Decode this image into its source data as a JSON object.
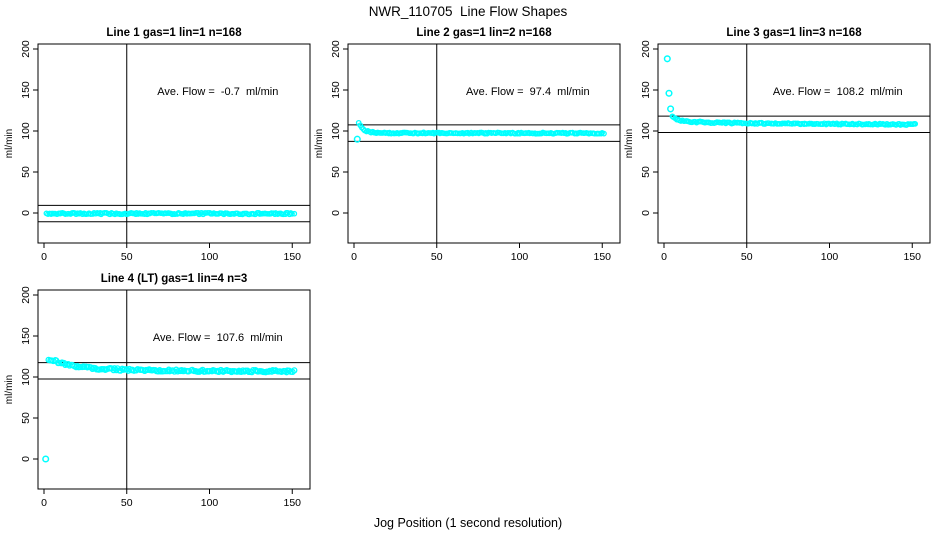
{
  "page": {
    "title": "NWR_110705  Line Flow Shapes",
    "xlabel": "Jog Position (1 second resolution)",
    "ylabel": "ml/min"
  },
  "colors": {
    "points": "#00FFFF",
    "axis": "#000000",
    "background": "#FFFFFF"
  },
  "chart_data": {
    "type": "scatter",
    "suptitle": "NWR_110705  Line Flow Shapes",
    "xlabel": "Jog Position (1 second resolution)",
    "ylabel": "ml/min",
    "x_ticks": [
      0,
      50,
      100,
      150
    ],
    "y_ticks": [
      0,
      50,
      100,
      150,
      200
    ],
    "xlim": [
      -4,
      161
    ],
    "ylim": [
      -30,
      208
    ],
    "vline_x": 50,
    "marker": "open-circle",
    "marker_color": "#00FFFF",
    "annotation_anchor": {
      "x": 105,
      "y": 144
    },
    "panels": [
      {
        "title": "Line 1 gas=1 lin=1 n=168",
        "ave_flow": -0.7,
        "n": 168,
        "annotation": "Ave. Flow =  -0.7  ml/min",
        "hlines": [
          9.3,
          -10.7
        ],
        "series_profile": [
          [
            1.5,
            -0.7
          ],
          [
            151,
            -0.7
          ]
        ],
        "outlier_points": [],
        "jitter": 1.0,
        "samples": 168,
        "marker_r": 2.2
      },
      {
        "title": "Line 2 gas=1 lin=2 n=168",
        "ave_flow": 97.4,
        "n": 168,
        "annotation": "Ave. Flow =  97.4  ml/min",
        "hlines": [
          107.4,
          87.4
        ],
        "series_profile": [
          [
            3,
            110.5
          ],
          [
            4,
            106.5
          ],
          [
            5,
            103.5
          ],
          [
            7,
            100.5
          ],
          [
            10,
            98.8
          ],
          [
            15,
            97.9
          ],
          [
            25,
            97.5
          ],
          [
            151,
            97.3
          ]
        ],
        "outlier_points": [
          [
            2,
            90
          ]
        ],
        "jitter": 0.8,
        "samples": 167,
        "marker_r": 2.2
      },
      {
        "title": "Line 3 gas=1 lin=3 n=168",
        "ave_flow": 108.2,
        "n": 168,
        "annotation": "Ave. Flow =  108.2  ml/min",
        "hlines": [
          118.2,
          98.2
        ],
        "series_profile": [
          [
            5,
            117.5
          ],
          [
            7,
            114.8
          ],
          [
            10,
            112.8
          ],
          [
            15,
            111.5
          ],
          [
            25,
            110.5
          ],
          [
            50,
            109.5
          ],
          [
            100,
            108.6
          ],
          [
            152,
            108
          ]
        ],
        "outlier_points": [
          [
            2,
            188
          ],
          [
            3,
            146
          ],
          [
            4,
            127
          ]
        ],
        "jitter": 0.8,
        "samples": 164,
        "marker_r": 2.2
      },
      {
        "title": "Line 4 (LT) gas=1 lin=4 n=3",
        "ave_flow": 107.6,
        "n": 3,
        "annotation": "Ave. Flow =  107.6  ml/min",
        "hlines": [
          117.6,
          97.6
        ],
        "series_profile": [
          [
            3,
            122
          ],
          [
            5,
            120.5
          ],
          [
            8,
            118.5
          ],
          [
            12,
            116
          ],
          [
            18,
            113.5
          ],
          [
            25,
            111.5
          ],
          [
            35,
            110
          ],
          [
            50,
            108.8
          ],
          [
            70,
            108
          ],
          [
            100,
            107.4
          ],
          [
            151,
            107
          ]
        ],
        "outlier_points": [
          [
            1,
            0
          ]
        ],
        "jitter": 1.3,
        "samples": 165,
        "marker_r": 2.5
      }
    ]
  }
}
